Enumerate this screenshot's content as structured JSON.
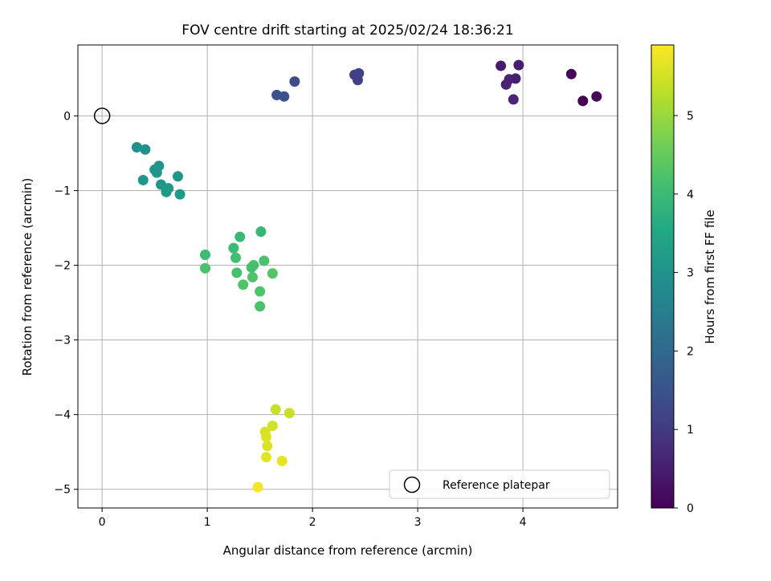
{
  "chart_data": {
    "type": "scatter",
    "title": "FOV centre drift starting at 2025/02/24 18:36:21",
    "xlabel": "Angular distance from reference (arcmin)",
    "ylabel": "Rotation from reference (arcmin)",
    "xlim": [
      -0.23,
      4.9
    ],
    "ylim": [
      -5.25,
      0.95
    ],
    "xticks": [
      0,
      1,
      2,
      3,
      4
    ],
    "yticks": [
      0,
      -1,
      -2,
      -3,
      -4,
      -5
    ],
    "xtick_labels": [
      "0",
      "1",
      "2",
      "3",
      "4"
    ],
    "ytick_labels": [
      "0",
      "−1",
      "−2",
      "−3",
      "−4",
      "−5"
    ],
    "grid": true,
    "colormap": "viridis",
    "colorbar": {
      "label": "Hours from first FF file",
      "range": [
        0,
        5.9
      ],
      "ticks": [
        0,
        1,
        2,
        3,
        4,
        5
      ],
      "tick_labels": [
        "0",
        "1",
        "2",
        "3",
        "4",
        "5"
      ]
    },
    "legend": {
      "position": "lower-right",
      "entries": [
        "Reference platepar"
      ]
    },
    "reference_point": {
      "x": 0,
      "y": 0
    },
    "points": [
      {
        "x": 4.46,
        "y": 0.56,
        "c": 0.1
      },
      {
        "x": 4.7,
        "y": 0.26,
        "c": 0.05
      },
      {
        "x": 4.57,
        "y": 0.2,
        "c": 0.0
      },
      {
        "x": 3.79,
        "y": 0.67,
        "c": 0.45
      },
      {
        "x": 3.96,
        "y": 0.68,
        "c": 0.5
      },
      {
        "x": 3.87,
        "y": 0.49,
        "c": 0.55
      },
      {
        "x": 3.93,
        "y": 0.5,
        "c": 0.5
      },
      {
        "x": 3.84,
        "y": 0.42,
        "c": 0.55
      },
      {
        "x": 3.91,
        "y": 0.22,
        "c": 0.6
      },
      {
        "x": 2.4,
        "y": 0.55,
        "c": 1.1
      },
      {
        "x": 2.44,
        "y": 0.57,
        "c": 1.15
      },
      {
        "x": 2.43,
        "y": 0.48,
        "c": 1.15
      },
      {
        "x": 1.83,
        "y": 0.46,
        "c": 1.35
      },
      {
        "x": 1.66,
        "y": 0.28,
        "c": 1.45
      },
      {
        "x": 1.73,
        "y": 0.26,
        "c": 1.45
      },
      {
        "x": 0.33,
        "y": -0.42,
        "c": 2.9
      },
      {
        "x": 0.41,
        "y": -0.45,
        "c": 2.95
      },
      {
        "x": 0.54,
        "y": -0.67,
        "c": 3.0
      },
      {
        "x": 0.5,
        "y": -0.72,
        "c": 3.0
      },
      {
        "x": 0.52,
        "y": -0.76,
        "c": 3.05
      },
      {
        "x": 0.72,
        "y": -0.81,
        "c": 3.05
      },
      {
        "x": 0.39,
        "y": -0.86,
        "c": 3.05
      },
      {
        "x": 0.56,
        "y": -0.92,
        "c": 3.1
      },
      {
        "x": 0.63,
        "y": -0.97,
        "c": 3.15
      },
      {
        "x": 0.61,
        "y": -1.02,
        "c": 3.15
      },
      {
        "x": 0.74,
        "y": -1.05,
        "c": 3.2
      },
      {
        "x": 1.51,
        "y": -1.55,
        "c": 3.9
      },
      {
        "x": 1.31,
        "y": -1.62,
        "c": 3.95
      },
      {
        "x": 1.25,
        "y": -1.77,
        "c": 4.0
      },
      {
        "x": 0.98,
        "y": -1.86,
        "c": 4.05
      },
      {
        "x": 1.27,
        "y": -1.9,
        "c": 4.1
      },
      {
        "x": 1.54,
        "y": -1.94,
        "c": 4.2
      },
      {
        "x": 1.44,
        "y": -2.0,
        "c": 4.15
      },
      {
        "x": 1.42,
        "y": -2.03,
        "c": 4.15
      },
      {
        "x": 0.98,
        "y": -2.04,
        "c": 4.2
      },
      {
        "x": 1.28,
        "y": -2.1,
        "c": 4.15
      },
      {
        "x": 1.62,
        "y": -2.11,
        "c": 4.3
      },
      {
        "x": 1.43,
        "y": -2.16,
        "c": 4.25
      },
      {
        "x": 1.34,
        "y": -2.26,
        "c": 4.25
      },
      {
        "x": 1.5,
        "y": -2.35,
        "c": 4.25
      },
      {
        "x": 1.5,
        "y": -2.55,
        "c": 4.2
      },
      {
        "x": 1.65,
        "y": -3.93,
        "c": 5.4
      },
      {
        "x": 1.78,
        "y": -3.98,
        "c": 5.4
      },
      {
        "x": 1.62,
        "y": -4.15,
        "c": 5.5
      },
      {
        "x": 1.55,
        "y": -4.23,
        "c": 5.55
      },
      {
        "x": 1.56,
        "y": -4.3,
        "c": 5.6
      },
      {
        "x": 1.57,
        "y": -4.42,
        "c": 5.6
      },
      {
        "x": 1.56,
        "y": -4.57,
        "c": 5.65
      },
      {
        "x": 1.71,
        "y": -4.62,
        "c": 5.7
      },
      {
        "x": 1.48,
        "y": -4.97,
        "c": 5.8
      }
    ]
  }
}
